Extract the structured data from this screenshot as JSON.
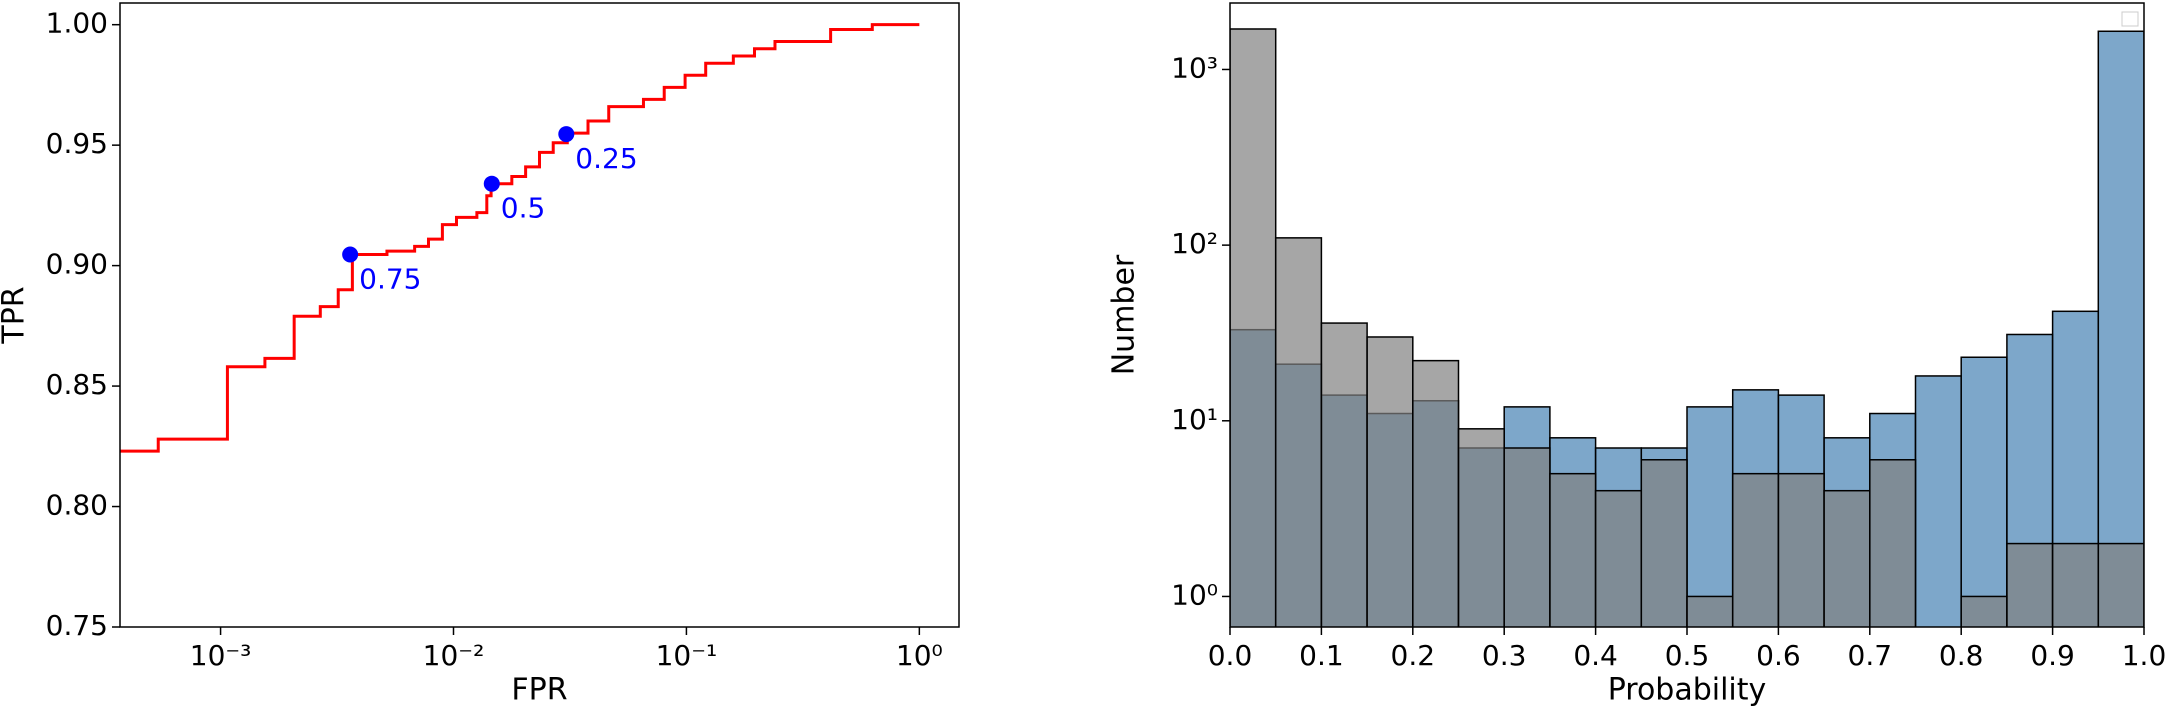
{
  "chart_data": [
    {
      "type": "line",
      "xlabel": "FPR",
      "ylabel": "TPR",
      "xscale": "log",
      "color": "red",
      "x": [
        0.00037,
        0.00054,
        0.00107,
        0.00155,
        0.00207,
        0.00268,
        0.0032,
        0.00368,
        0.00518,
        0.00681,
        0.00781,
        0.00896,
        0.0103,
        0.0126,
        0.0139,
        0.0145,
        0.0178,
        0.0204,
        0.0234,
        0.0268,
        0.0308,
        0.0378,
        0.0464,
        0.0654,
        0.0803,
        0.0987,
        0.121,
        0.159,
        0.196,
        0.24,
        0.339,
        0.416,
        0.628,
        1.0
      ],
      "values": [
        0.823,
        0.828,
        0.858,
        0.8615,
        0.879,
        0.883,
        0.89,
        0.9046,
        0.906,
        0.908,
        0.911,
        0.917,
        0.92,
        0.922,
        0.929,
        0.934,
        0.937,
        0.941,
        0.947,
        0.951,
        0.955,
        0.96,
        0.966,
        0.969,
        0.974,
        0.979,
        0.984,
        0.987,
        0.99,
        0.993,
        0.993,
        0.998,
        1.0,
        1.0
      ],
      "annotations": [
        {
          "x": 0.0036,
          "y": 0.9046,
          "text": "0.75"
        },
        {
          "x": 0.0146,
          "y": 0.934,
          "text": "0.5"
        },
        {
          "x": 0.0305,
          "y": 0.9546,
          "text": "0.25"
        }
      ],
      "annotation_color": "blue",
      "xlim": [
        0.00037,
        1.48
      ],
      "ylim": [
        0.75,
        1.009
      ],
      "xticks": [
        {
          "value": 0.001,
          "label": "10⁻³"
        },
        {
          "value": 0.01,
          "label": "10⁻²"
        },
        {
          "value": 0.1,
          "label": "10⁻¹"
        },
        {
          "value": 1,
          "label": "10⁰"
        }
      ],
      "yticks": [
        0.75,
        {
          "value": 0.8,
          "label": "0.80"
        },
        0.85,
        {
          "value": 0.9,
          "label": "0.90"
        },
        0.95,
        {
          "value": 1.0,
          "label": "1.00"
        }
      ]
    },
    {
      "type": "histogram",
      "xlabel": "Probability",
      "ylabel": "Number",
      "yscale": "log",
      "bins": [
        0,
        0.05,
        0.1,
        0.15,
        0.2,
        0.25,
        0.3,
        0.35,
        0.4,
        0.45,
        0.5,
        0.55,
        0.6,
        0.65,
        0.7,
        0.75,
        0.8,
        0.85,
        0.9,
        0.95,
        1.0
      ],
      "series": [
        {
          "color": "#4682b4",
          "values": [
            33,
            21,
            14,
            11,
            13,
            7,
            12,
            8,
            7,
            7,
            12,
            15,
            14,
            8,
            11,
            18,
            23,
            31,
            42,
            1650
          ]
        },
        {
          "color": "#808080",
          "values": [
            1700,
            110,
            36,
            30,
            22,
            9,
            7,
            5,
            4,
            6,
            1,
            5,
            5,
            4,
            6,
            0,
            1,
            2,
            2,
            2
          ]
        }
      ],
      "xlim": [
        0,
        1.0
      ],
      "ylim": [
        0.67,
        2390
      ],
      "xticks": [
        {
          "value": 0,
          "label": "0.0"
        },
        0.1,
        0.2,
        0.3,
        0.4,
        0.5,
        0.6,
        0.7,
        0.8,
        0.9,
        {
          "value": 1.0,
          "label": "1.0"
        }
      ],
      "yticks": [
        {
          "value": 1,
          "label": "10⁰"
        },
        {
          "value": 10,
          "label": "10¹"
        },
        {
          "value": 100,
          "label": "10²"
        },
        {
          "value": 1000,
          "label": "10³"
        }
      ]
    }
  ]
}
